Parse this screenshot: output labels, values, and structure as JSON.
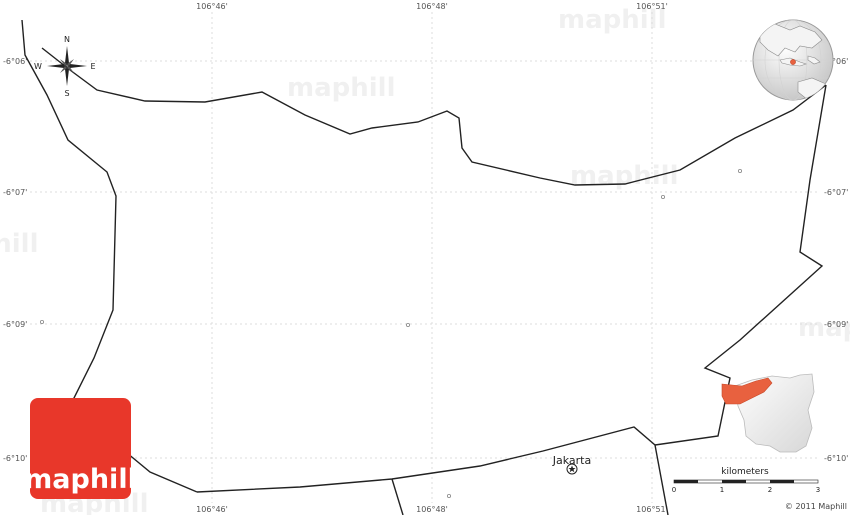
{
  "map": {
    "brand_color": "#e8372a",
    "highlight_color": "#e8613f",
    "longitude_labels": [
      "106°46'",
      "106°48'",
      "106°51'"
    ],
    "latitude_labels": [
      "-6°06'",
      "-6°07'",
      "-6°09'",
      "-6°10'"
    ],
    "compass": {
      "north": "N",
      "south": "S",
      "east": "E",
      "west": "W"
    },
    "city": {
      "name": "Jakarta",
      "icon": "capital-star-icon"
    },
    "watermark": "maphill",
    "logo": {
      "text": "maphill"
    },
    "scale_bar": {
      "title": "kilometers",
      "ticks": [
        "0",
        "1",
        "2",
        "3"
      ]
    },
    "copyright": "© 2011 Maphill"
  }
}
